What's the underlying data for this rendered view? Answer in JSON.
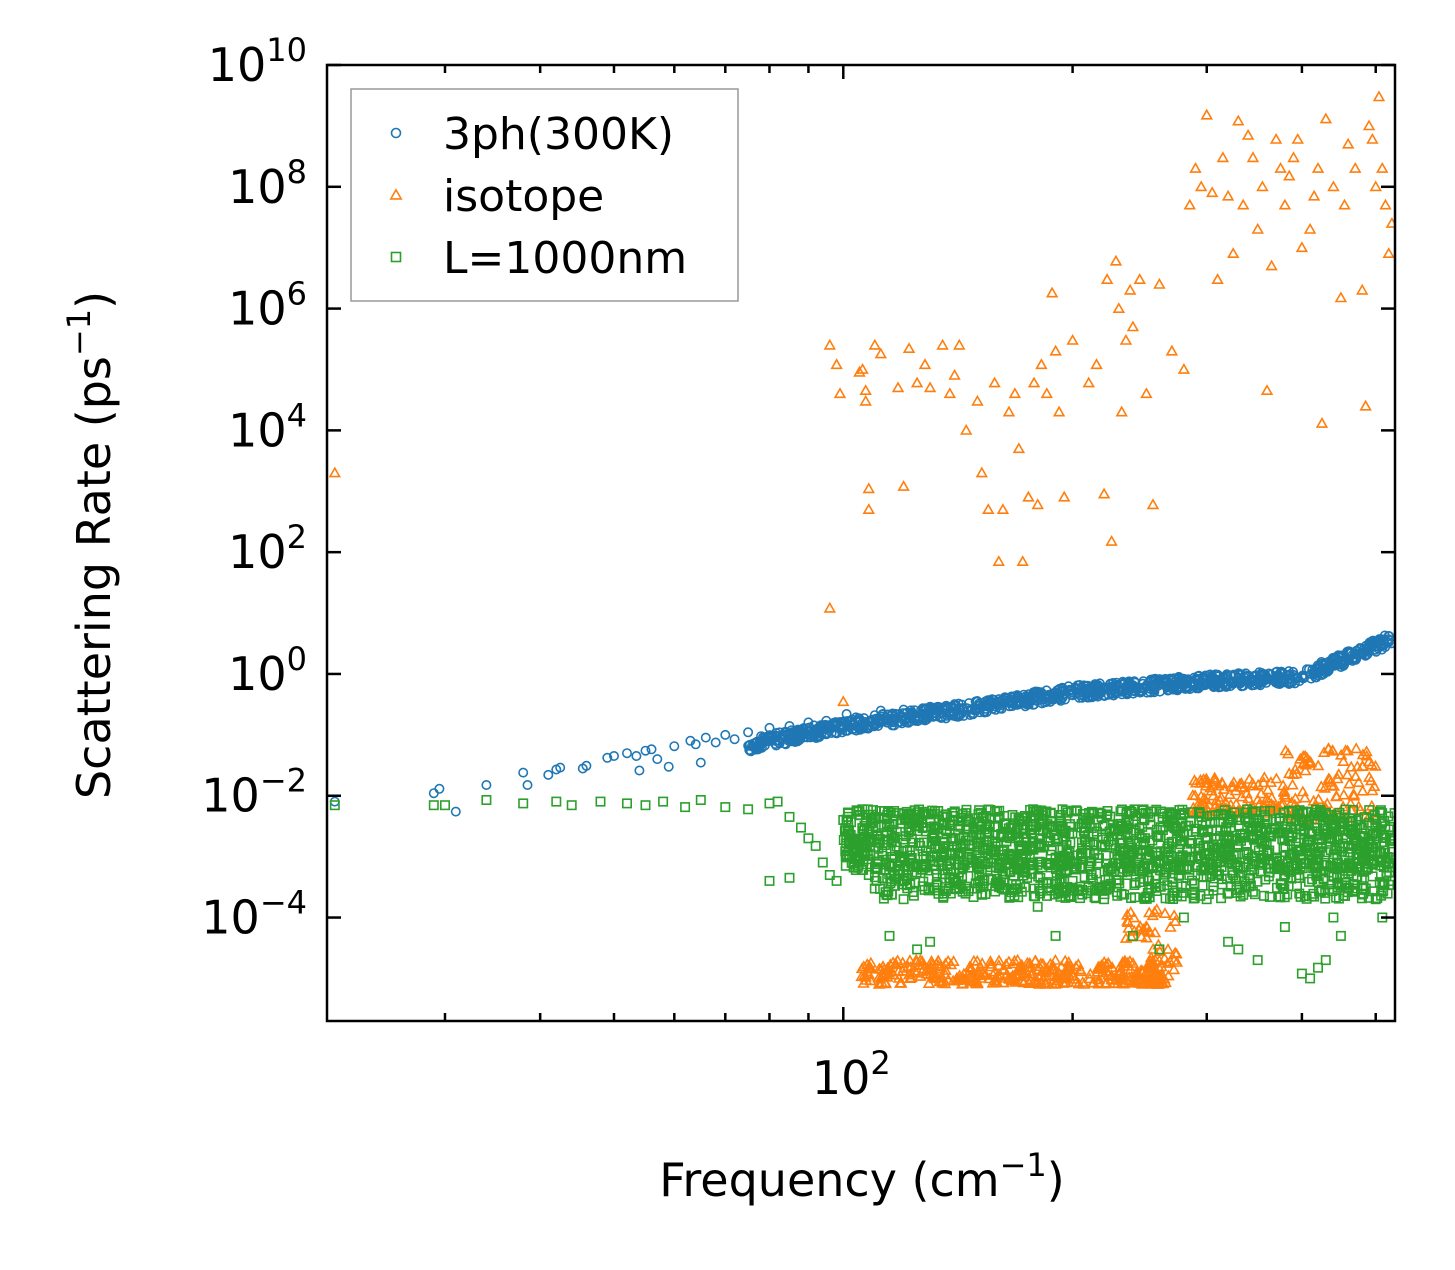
{
  "chart_data": {
    "type": "scatter",
    "xlabel": "Frequency (cm",
    "xlabel_sup": "−1",
    "xlabel_end": ")",
    "ylabel": "Scattering Rate (ps",
    "ylabel_sup": "−1",
    "ylabel_end": ")",
    "xscale": "log",
    "yscale": "log",
    "xlim": [
      21,
      530
    ],
    "ylim": [
      2e-06,
      10000000000
    ],
    "x_tick_labels": [
      {
        "value": 100,
        "base": "10",
        "exp": "2"
      }
    ],
    "y_tick_labels": [
      {
        "value": 10000000000,
        "base": "10",
        "exp": "10"
      },
      {
        "value": 100000000,
        "base": "10",
        "exp": "8"
      },
      {
        "value": 1000000,
        "base": "10",
        "exp": "6"
      },
      {
        "value": 10000,
        "base": "10",
        "exp": "4"
      },
      {
        "value": 100,
        "base": "10",
        "exp": "2"
      },
      {
        "value": 1,
        "base": "10",
        "exp": "0"
      },
      {
        "value": 0.01,
        "base": "10",
        "exp": "−2"
      },
      {
        "value": 0.0001,
        "base": "10",
        "exp": "−4"
      }
    ],
    "legend_position": "upper-left",
    "series": [
      {
        "name": "3ph(300K)",
        "marker": "circle",
        "color": "#1f77b4",
        "trend": {
          "x": [
            21,
            30,
            40,
            55,
            70,
            100,
            150,
            200,
            300,
            400,
            530
          ],
          "y_log10": [
            -2.1,
            -1.9,
            -1.75,
            -1.55,
            -1.25,
            -0.85,
            -0.55,
            -0.3,
            -0.12,
            -0.05,
            0.6
          ]
        },
        "points": [
          [
            21.5,
            0.008
          ],
          [
            29,
            0.011
          ],
          [
            29.5,
            0.013
          ],
          [
            31,
            0.0055
          ],
          [
            34,
            0.015
          ],
          [
            38,
            0.024
          ],
          [
            38.5,
            0.015
          ],
          [
            41,
            0.022
          ],
          [
            42,
            0.027
          ],
          [
            42.5,
            0.029
          ],
          [
            45.5,
            0.028
          ],
          [
            46,
            0.031
          ],
          [
            49,
            0.042
          ],
          [
            50,
            0.045
          ],
          [
            52,
            0.05
          ],
          [
            53.5,
            0.045
          ],
          [
            54,
            0.026
          ],
          [
            55,
            0.055
          ],
          [
            56,
            0.058
          ],
          [
            57,
            0.04
          ],
          [
            59,
            0.03
          ],
          [
            60,
            0.065
          ],
          [
            63,
            0.08
          ],
          [
            64,
            0.07
          ],
          [
            65,
            0.035
          ],
          [
            66,
            0.09
          ],
          [
            68,
            0.075
          ],
          [
            70,
            0.1
          ],
          [
            72,
            0.085
          ],
          [
            75,
            0.11
          ],
          [
            78,
            0.095
          ],
          [
            80,
            0.13
          ],
          [
            85,
            0.14
          ],
          [
            90,
            0.16
          ],
          [
            95,
            0.17
          ],
          [
            101,
            0.22
          ],
          [
            110,
            0.21
          ],
          [
            112,
            0.25
          ],
          [
            120,
            0.26
          ],
          [
            130,
            0.29
          ],
          [
            140,
            0.32
          ],
          [
            150,
            0.35
          ],
          [
            170,
            0.42
          ],
          [
            190,
            0.5
          ],
          [
            210,
            0.58
          ],
          [
            240,
            0.65
          ],
          [
            260,
            0.72
          ],
          [
            300,
            0.8
          ],
          [
            350,
            0.78
          ],
          [
            400,
            0.9
          ],
          [
            450,
            1.3
          ],
          [
            500,
            2.5
          ],
          [
            520,
            3.3
          ]
        ]
      },
      {
        "name": "isotope",
        "marker": "triangle",
        "color": "#ff7f0e",
        "points": [
          [
            21.5,
            2000
          ],
          [
            96,
            12
          ],
          [
            100,
            0.35
          ],
          [
            96,
            250000
          ],
          [
            98,
            120000
          ],
          [
            99,
            40000
          ],
          [
            105,
            90000
          ],
          [
            106,
            100000
          ],
          [
            107,
            45000
          ],
          [
            107,
            30000
          ],
          [
            108,
            1100
          ],
          [
            108,
            500
          ],
          [
            110,
            250000
          ],
          [
            112,
            180000
          ],
          [
            118,
            50000
          ],
          [
            120,
            1200
          ],
          [
            122,
            220000
          ],
          [
            125,
            60000
          ],
          [
            128,
            120000
          ],
          [
            130,
            50000
          ],
          [
            135,
            250000
          ],
          [
            138,
            40000
          ],
          [
            140,
            80000
          ],
          [
            142,
            250000
          ],
          [
            145,
            10000
          ],
          [
            150,
            30000
          ],
          [
            152,
            2000
          ],
          [
            155,
            500
          ],
          [
            158,
            60000
          ],
          [
            160,
            70
          ],
          [
            162,
            500
          ],
          [
            165,
            20000
          ],
          [
            168,
            40000
          ],
          [
            170,
            5000
          ],
          [
            172,
            70
          ],
          [
            175,
            800
          ],
          [
            178,
            60000
          ],
          [
            180,
            600
          ],
          [
            182,
            120000
          ],
          [
            185,
            40000
          ],
          [
            188,
            1800000
          ],
          [
            190,
            200000
          ],
          [
            192,
            20000
          ],
          [
            195,
            800
          ],
          [
            200,
            300000
          ],
          [
            210,
            60000
          ],
          [
            215,
            120000
          ],
          [
            220,
            900
          ],
          [
            222,
            3000000
          ],
          [
            225,
            150
          ],
          [
            228,
            6000000
          ],
          [
            230,
            1000000
          ],
          [
            232,
            20000
          ],
          [
            235,
            300000
          ],
          [
            238,
            2000000
          ],
          [
            240,
            500000
          ],
          [
            245,
            3000000
          ],
          [
            250,
            40000
          ],
          [
            255,
            600
          ],
          [
            260,
            2500000
          ],
          [
            270,
            200000
          ],
          [
            280,
            100000
          ],
          [
            285,
            50000000
          ],
          [
            290,
            200000000
          ],
          [
            295,
            100000000
          ],
          [
            300,
            1500000000
          ],
          [
            305,
            80000000
          ],
          [
            310,
            3000000
          ],
          [
            315,
            300000000
          ],
          [
            320,
            70000000
          ],
          [
            325,
            8000000
          ],
          [
            330,
            1200000000
          ],
          [
            335,
            50000000
          ],
          [
            340,
            700000000
          ],
          [
            345,
            300000000
          ],
          [
            350,
            20000000
          ],
          [
            355,
            100000000
          ],
          [
            360,
            45000
          ],
          [
            365,
            5000000
          ],
          [
            370,
            600000000
          ],
          [
            375,
            200000000
          ],
          [
            380,
            50000000
          ],
          [
            385,
            150000000
          ],
          [
            390,
            300000000
          ],
          [
            395,
            600000000
          ],
          [
            400,
            10000000
          ],
          [
            410,
            20000000
          ],
          [
            415,
            70000000
          ],
          [
            420,
            200000000
          ],
          [
            425,
            13000
          ],
          [
            430,
            1300000000
          ],
          [
            440,
            100000000
          ],
          [
            450,
            1500000
          ],
          [
            455,
            50000000
          ],
          [
            460,
            500000000
          ],
          [
            470,
            200000000
          ],
          [
            480,
            2000000
          ],
          [
            485,
            25000
          ],
          [
            490,
            1000000000
          ],
          [
            495,
            600000000
          ],
          [
            500,
            100000000
          ],
          [
            505,
            3000000000
          ],
          [
            510,
            200000000
          ],
          [
            515,
            50000000
          ],
          [
            520,
            8000000
          ],
          [
            525,
            25000000
          ]
        ],
        "bands": [
          {
            "x_range": [
              105,
              265
            ],
            "y_range": [
              8e-06,
              2e-05
            ]
          },
          {
            "x_range": [
              235,
              275
            ],
            "y_range": [
              1e-05,
              0.00015
            ]
          },
          {
            "x_range": [
              285,
              370
            ],
            "y_range": [
              0.005,
              0.02
            ]
          },
          {
            "x_range": [
              370,
              500
            ],
            "y_range": [
              0.004,
              0.06
            ]
          }
        ]
      },
      {
        "name": "L=1000nm",
        "marker": "square",
        "color": "#2ca02c",
        "points": [
          [
            21.5,
            0.007
          ],
          [
            29,
            0.007
          ],
          [
            30,
            0.007
          ],
          [
            34,
            0.0085
          ],
          [
            38,
            0.0075
          ],
          [
            42,
            0.008
          ],
          [
            44,
            0.007
          ],
          [
            48,
            0.008
          ],
          [
            52,
            0.0075
          ],
          [
            55,
            0.007
          ],
          [
            58,
            0.008
          ],
          [
            62,
            0.0065
          ],
          [
            65,
            0.0085
          ],
          [
            70,
            0.0065
          ],
          [
            75,
            0.006
          ],
          [
            80,
            0.0075
          ],
          [
            82,
            0.008
          ],
          [
            85,
            0.0045
          ],
          [
            88,
            0.003
          ],
          [
            90,
            0.002
          ],
          [
            92,
            0.0015
          ],
          [
            94,
            0.0008
          ],
          [
            96,
            0.0005
          ],
          [
            98,
            0.0004
          ],
          [
            80,
            0.0004
          ],
          [
            85,
            0.00045
          ],
          [
            100,
            0.004
          ],
          [
            105,
            0.0015
          ],
          [
            108,
            0.0005
          ],
          [
            110,
            0.0003
          ],
          [
            115,
            5e-05
          ],
          [
            120,
            0.0002
          ],
          [
            125,
            3e-05
          ],
          [
            130,
            4e-05
          ],
          [
            140,
            0.0003
          ],
          [
            150,
            0.0003
          ],
          [
            160,
            0.0008
          ],
          [
            180,
            0.00015
          ],
          [
            190,
            5e-05
          ],
          [
            200,
            0.0004
          ],
          [
            220,
            0.0002
          ],
          [
            240,
            5e-05
          ],
          [
            260,
            3e-05
          ],
          [
            280,
            0.0001
          ],
          [
            300,
            0.0002
          ],
          [
            320,
            4e-05
          ],
          [
            330,
            3e-05
          ],
          [
            350,
            2e-05
          ],
          [
            380,
            7e-05
          ],
          [
            400,
            1.2e-05
          ],
          [
            410,
            1e-05
          ],
          [
            420,
            1.5e-05
          ],
          [
            430,
            2e-05
          ],
          [
            440,
            0.0001
          ],
          [
            450,
            5e-05
          ],
          [
            470,
            0.0003
          ],
          [
            480,
            0.0003
          ],
          [
            500,
            0.0002
          ],
          [
            510,
            0.0001
          ],
          [
            520,
            0.0008
          ],
          [
            525,
            0.0012
          ]
        ],
        "bands": [
          {
            "x_range": [
              100,
              530
            ],
            "y_range": [
              0.0006,
              0.006
            ]
          },
          {
            "x_range": [
              110,
              530
            ],
            "y_range": [
              0.0002,
              0.0008
            ]
          }
        ]
      }
    ]
  }
}
